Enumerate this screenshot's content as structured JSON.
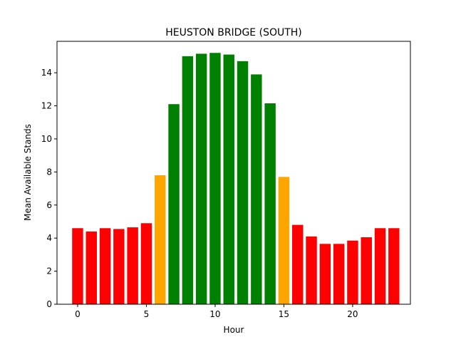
{
  "chart_data": {
    "type": "bar",
    "title": "HEUSTON BRIDGE (SOUTH)",
    "xlabel": "Hour",
    "ylabel": "Mean Available Stands",
    "x": [
      0,
      1,
      2,
      3,
      4,
      5,
      6,
      7,
      8,
      9,
      10,
      11,
      12,
      13,
      14,
      15,
      16,
      17,
      18,
      19,
      20,
      21,
      22,
      23
    ],
    "values": [
      4.6,
      4.4,
      4.6,
      4.55,
      4.65,
      4.9,
      7.8,
      12.1,
      15.0,
      15.15,
      15.2,
      15.1,
      14.7,
      13.9,
      12.15,
      7.7,
      4.8,
      4.1,
      3.65,
      3.65,
      3.85,
      4.05,
      4.6,
      4.6
    ],
    "colors": [
      "#ff0000",
      "#ff0000",
      "#ff0000",
      "#ff0000",
      "#ff0000",
      "#ff0000",
      "#ffa500",
      "#008000",
      "#008000",
      "#008000",
      "#008000",
      "#008000",
      "#008000",
      "#008000",
      "#008000",
      "#ffa500",
      "#ff0000",
      "#ff0000",
      "#ff0000",
      "#ff0000",
      "#ff0000",
      "#ff0000",
      "#ff0000",
      "#ff0000"
    ],
    "xlim": [
      -1.5,
      24.2
    ],
    "ylim": [
      0,
      15.9
    ],
    "xticks": [
      0,
      5,
      10,
      15,
      20
    ],
    "yticks": [
      0,
      2,
      4,
      6,
      8,
      10,
      12,
      14
    ],
    "grid": false,
    "legend": "none"
  }
}
